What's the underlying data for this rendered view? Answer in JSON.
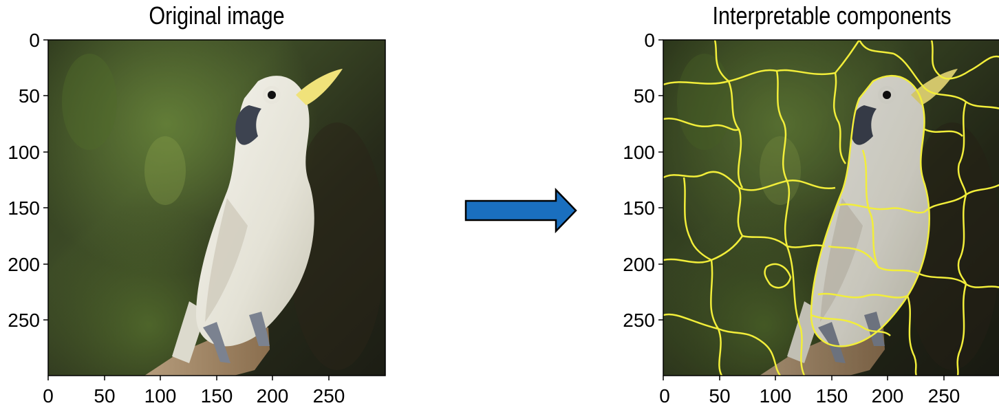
{
  "panels": [
    {
      "id": "original",
      "title": "Original image",
      "x_ticks": [
        "0",
        "50",
        "100",
        "150",
        "200",
        "250"
      ],
      "y_ticks": [
        "0",
        "50",
        "100",
        "150",
        "200",
        "250"
      ]
    },
    {
      "id": "components",
      "title": "Interpretable components",
      "x_ticks": [
        "0",
        "50",
        "100",
        "150",
        "200",
        "250"
      ],
      "y_ticks": [
        "0",
        "50",
        "100",
        "150",
        "200",
        "250"
      ]
    }
  ],
  "colors": {
    "arrow_fill": "#1a6fbf",
    "arrow_stroke": "#000000",
    "segment_line": "#f2ee3a"
  },
  "image_subject": "white-cockatoo-on-branch-photo"
}
